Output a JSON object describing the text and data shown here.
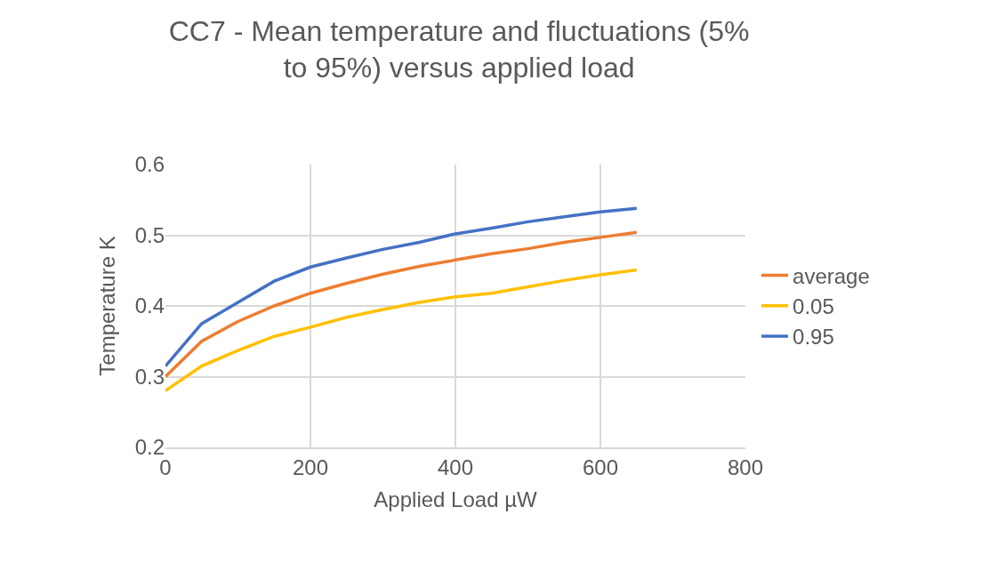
{
  "chart_data": {
    "type": "line",
    "title": "CC7 - Mean temperature and fluctuations (5% to 95%) versus applied load",
    "xlabel": "Applied Load µW",
    "ylabel": "Temperature K",
    "x": [
      0,
      50,
      100,
      150,
      200,
      250,
      300,
      350,
      400,
      450,
      500,
      550,
      600,
      650
    ],
    "series": [
      {
        "name": "average",
        "color": "#ed7d31",
        "values": [
          0.3,
          0.35,
          0.378,
          0.4,
          0.418,
          0.432,
          0.445,
          0.456,
          0.465,
          0.474,
          0.481,
          0.49,
          0.497,
          0.504
        ]
      },
      {
        "name": "0.05",
        "color": "#ffc000",
        "values": [
          0.28,
          0.315,
          0.337,
          0.357,
          0.37,
          0.384,
          0.395,
          0.405,
          0.413,
          0.418,
          0.427,
          0.436,
          0.444,
          0.451
        ]
      },
      {
        "name": "0.95",
        "color": "#4472c4",
        "values": [
          0.315,
          0.375,
          0.405,
          0.435,
          0.455,
          0.468,
          0.48,
          0.49,
          0.502,
          0.51,
          0.519,
          0.526,
          0.533,
          0.538
        ]
      }
    ],
    "xlim": [
      0,
      800
    ],
    "xticks": [
      0,
      200,
      400,
      600,
      800
    ],
    "ylim": [
      0.2,
      0.6
    ],
    "yticks": [
      {
        "value": 0.2,
        "label": "0.2"
      },
      {
        "value": 0.3,
        "label": "0.3"
      },
      {
        "value": 0.4,
        "label": "0.4"
      },
      {
        "value": 0.5,
        "label": "0.5"
      },
      {
        "value": 0.6,
        "label": "0.6"
      }
    ],
    "grid": true,
    "legend": "right",
    "marker": "none",
    "line_style": "solid"
  }
}
